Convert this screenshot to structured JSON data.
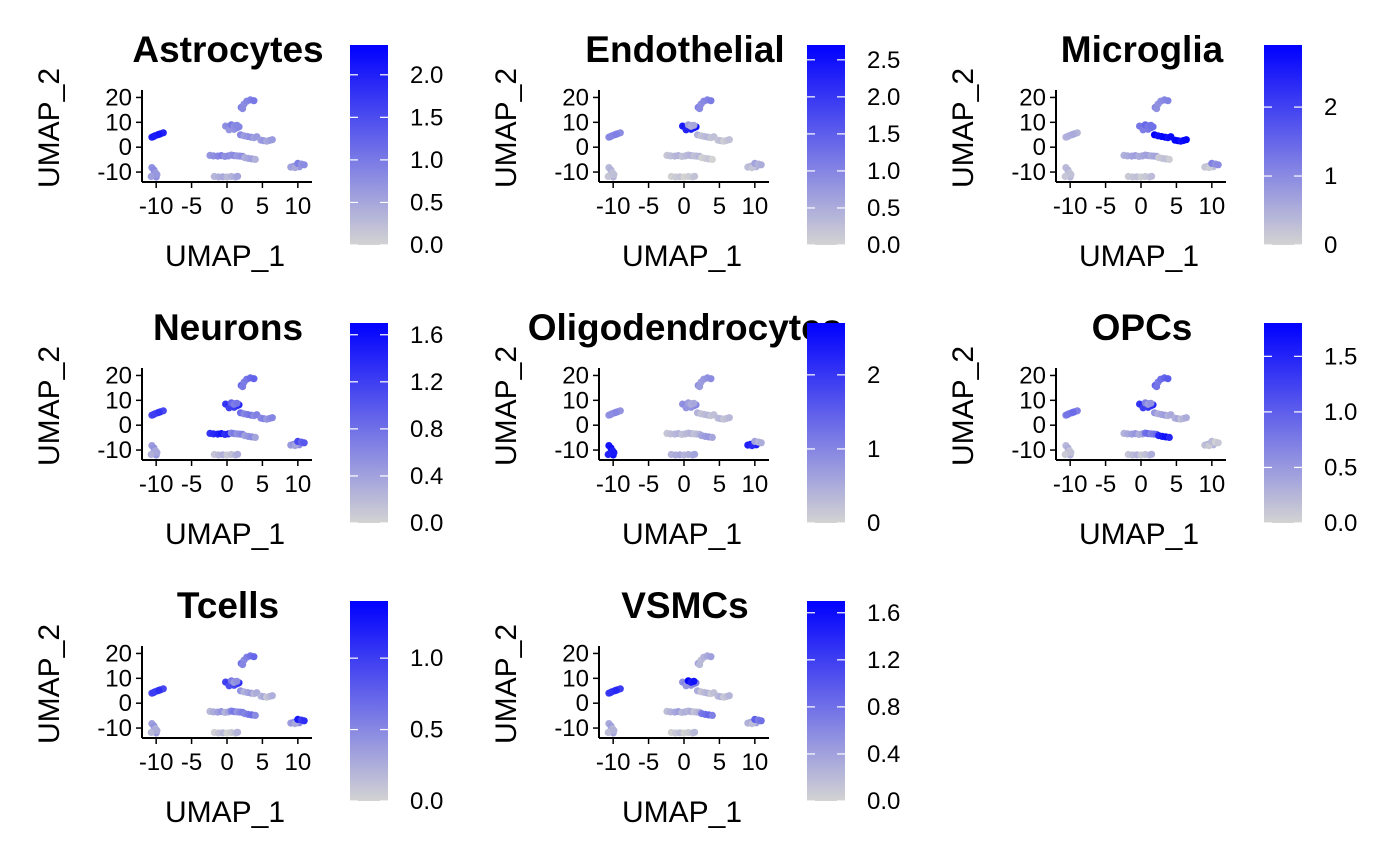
{
  "chart_data": [
    {
      "type": "scatter",
      "title": "Astrocytes",
      "xlabel": "UMAP_1",
      "ylabel": "UMAP_2",
      "xticks": [
        "-10",
        "-5",
        "0",
        "5",
        "10"
      ],
      "yticks": [
        "20",
        "10",
        "0",
        "-10"
      ],
      "xlim": [
        -12,
        12
      ],
      "ylim": [
        -14,
        23
      ],
      "colorbar": {
        "min": 0,
        "max": 2.35,
        "low_color": "#d3d3d3",
        "high_color": "#0000ff",
        "ticks": [
          "0.0",
          "0.5",
          "1.0",
          "1.5",
          "2.0"
        ],
        "tick_values": [
          0.0,
          0.5,
          1.0,
          1.5,
          2.0
        ]
      },
      "cluster_values": [
        2.05,
        0.7,
        0.4,
        0.9,
        0.8,
        0.7,
        0.6,
        0.8,
        0.7,
        0.5,
        0.9,
        0.6,
        0.8
      ]
    },
    {
      "type": "scatter",
      "title": "Endothelial",
      "xlabel": "UMAP_1",
      "ylabel": "UMAP_2",
      "xticks": [
        "-10",
        "-5",
        "0",
        "5",
        "10"
      ],
      "yticks": [
        "20",
        "10",
        "0",
        "-10"
      ],
      "xlim": [
        -12,
        12
      ],
      "ylim": [
        -14,
        23
      ],
      "colorbar": {
        "min": 0,
        "max": 2.7,
        "low_color": "#d3d3d3",
        "high_color": "#0000ff",
        "ticks": [
          "0.0",
          "0.5",
          "1.0",
          "1.5",
          "2.0",
          "2.5"
        ],
        "tick_values": [
          0.0,
          0.5,
          1.0,
          1.5,
          2.0,
          2.5
        ]
      },
      "cluster_values": [
        1.0,
        0.3,
        0.1,
        1.0,
        2.4,
        0.3,
        0.2,
        0.3,
        0.3,
        0.1,
        0.6,
        0.3,
        0.5
      ]
    },
    {
      "type": "scatter",
      "title": "Microglia",
      "xlabel": "UMAP_1",
      "ylabel": "UMAP_2",
      "xticks": [
        "-10",
        "-5",
        "0",
        "5",
        "10"
      ],
      "yticks": [
        "20",
        "10",
        "0",
        "-10"
      ],
      "xlim": [
        -12,
        12
      ],
      "ylim": [
        -14,
        23
      ],
      "colorbar": {
        "min": 0,
        "max": 2.9,
        "low_color": "#d3d3d3",
        "high_color": "#0000ff",
        "ticks": [
          "0",
          "1",
          "2"
        ],
        "tick_values": [
          0,
          1,
          2
        ]
      },
      "cluster_values": [
        0.5,
        0.3,
        0.2,
        1.0,
        1.3,
        2.8,
        2.8,
        0.6,
        0.6,
        0.2,
        1.4,
        0.2,
        1.0
      ]
    },
    {
      "type": "scatter",
      "title": "Neurons",
      "xlabel": "UMAP_1",
      "ylabel": "UMAP_2",
      "xticks": [
        "-10",
        "-5",
        "0",
        "5",
        "10"
      ],
      "yticks": [
        "20",
        "10",
        "0",
        "-10"
      ],
      "xlim": [
        -12,
        12
      ],
      "ylim": [
        -14,
        23
      ],
      "colorbar": {
        "min": 0,
        "max": 1.7,
        "low_color": "#d3d3d3",
        "high_color": "#0000ff",
        "ticks": [
          "0.0",
          "0.4",
          "0.8",
          "1.2",
          "1.6"
        ],
        "tick_values": [
          0.0,
          0.4,
          0.8,
          1.2,
          1.6
        ]
      },
      "cluster_values": [
        1.2,
        0.4,
        0.2,
        0.8,
        1.3,
        0.7,
        0.6,
        1.4,
        0.6,
        0.5,
        0.8,
        0.5,
        1.0
      ]
    },
    {
      "type": "scatter",
      "title": "Oligodendrocytes",
      "xlabel": "UMAP_1",
      "ylabel": "UMAP_2",
      "xticks": [
        "-10",
        "-5",
        "0",
        "5",
        "10"
      ],
      "yticks": [
        "20",
        "10",
        "0",
        "-10"
      ],
      "xlim": [
        -12,
        12
      ],
      "ylim": [
        -14,
        23
      ],
      "colorbar": {
        "min": 0,
        "max": 2.7,
        "low_color": "#d3d3d3",
        "high_color": "#0000ff",
        "ticks": [
          "0",
          "1",
          "2"
        ],
        "tick_values": [
          0,
          1,
          2
        ]
      },
      "cluster_values": [
        0.9,
        2.4,
        0.5,
        0.8,
        0.9,
        0.3,
        0.3,
        0.3,
        0.3,
        0.7,
        0.6,
        2.3,
        0.5
      ]
    },
    {
      "type": "scatter",
      "title": "OPCs",
      "xlabel": "UMAP_1",
      "ylabel": "UMAP_2",
      "xticks": [
        "-10",
        "-5",
        "0",
        "5",
        "10"
      ],
      "yticks": [
        "20",
        "10",
        "0",
        "-10"
      ],
      "xlim": [
        -12,
        12
      ],
      "ylim": [
        -14,
        23
      ],
      "colorbar": {
        "min": 0,
        "max": 1.8,
        "low_color": "#d3d3d3",
        "high_color": "#0000ff",
        "ticks": [
          "0.0",
          "0.5",
          "1.0",
          "1.5"
        ],
        "tick_values": [
          0.0,
          0.5,
          1.0,
          1.5
        ]
      },
      "cluster_values": [
        0.8,
        0.2,
        0.2,
        0.9,
        1.4,
        0.4,
        0.3,
        0.4,
        0.8,
        1.6,
        0.6,
        0.2,
        0.1
      ]
    },
    {
      "type": "scatter",
      "title": "Tcells",
      "xlabel": "UMAP_1",
      "ylabel": "UMAP_2",
      "xticks": [
        "-10",
        "-5",
        "0",
        "5",
        "10"
      ],
      "yticks": [
        "20",
        "10",
        "0",
        "-10"
      ],
      "xlim": [
        -12,
        12
      ],
      "ylim": [
        -14,
        23
      ],
      "colorbar": {
        "min": 0,
        "max": 1.4,
        "low_color": "#d3d3d3",
        "high_color": "#0000ff",
        "ticks": [
          "0.0",
          "0.5",
          "1.0"
        ],
        "tick_values": [
          0.0,
          0.5,
          1.0
        ]
      },
      "cluster_values": [
        1.0,
        0.3,
        0.1,
        0.6,
        1.0,
        0.3,
        0.2,
        0.3,
        0.5,
        0.6,
        0.5,
        0.4,
        1.1
      ]
    },
    {
      "type": "scatter",
      "title": "VSMCs",
      "xlabel": "UMAP_1",
      "ylabel": "UMAP_2",
      "xticks": [
        "-10",
        "-5",
        "0",
        "5",
        "10"
      ],
      "yticks": [
        "20",
        "10",
        "0",
        "-10"
      ],
      "xlim": [
        -12,
        12
      ],
      "ylim": [
        -14,
        23
      ],
      "colorbar": {
        "min": 0,
        "max": 1.7,
        "low_color": "#d3d3d3",
        "high_color": "#0000ff",
        "ticks": [
          "0.0",
          "0.4",
          "0.8",
          "1.2",
          "1.6"
        ],
        "tick_values": [
          0.0,
          0.4,
          0.8,
          1.2,
          1.6
        ]
      },
      "cluster_values": [
        1.3,
        0.3,
        0.1,
        0.3,
        0.6,
        0.2,
        0.2,
        0.3,
        0.2,
        0.8,
        1.6,
        0.3,
        0.8
      ]
    }
  ]
}
